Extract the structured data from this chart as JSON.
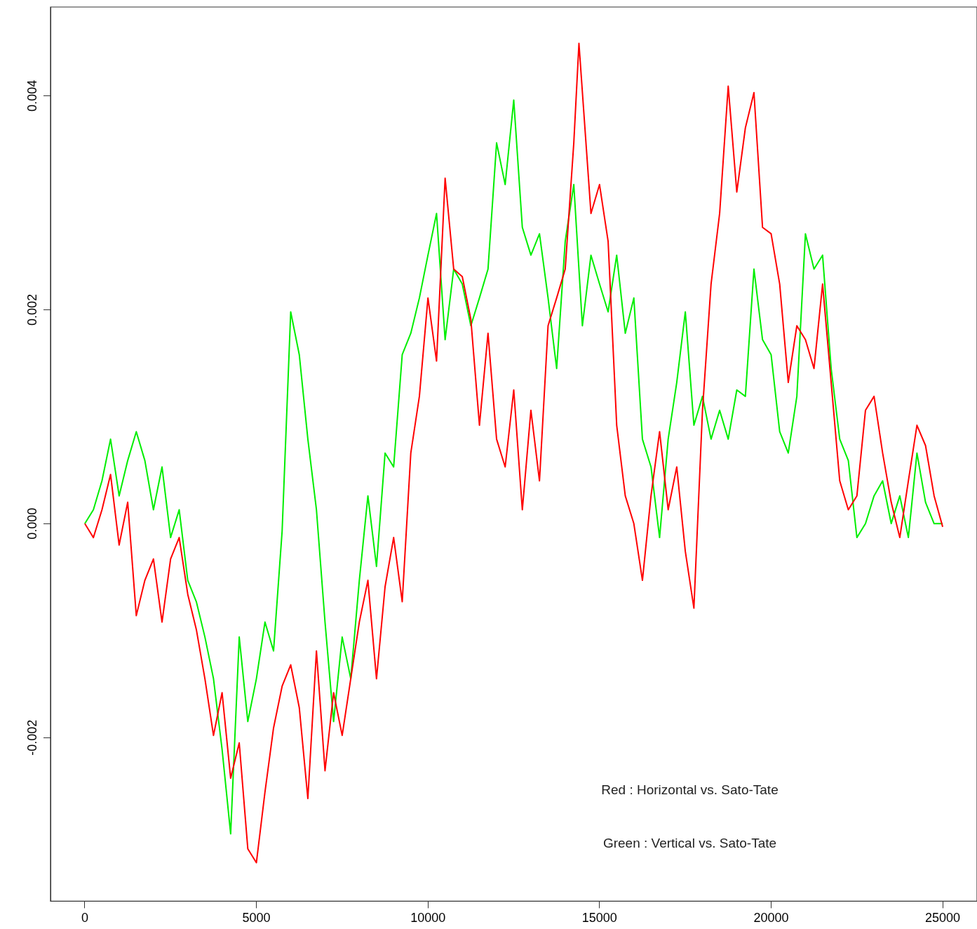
{
  "chart_data": {
    "type": "line",
    "xlim": [
      -1000,
      26000
    ],
    "ylim": [
      -0.00353,
      0.00483
    ],
    "xticks": [
      0,
      5000,
      10000,
      15000,
      20000,
      25000
    ],
    "yticks": [
      {
        "value": -0.002,
        "label": "-0.002"
      },
      {
        "value": 0,
        "label": "0.000"
      },
      {
        "value": 0.002,
        "label": "0.002"
      },
      {
        "value": 0.004,
        "label": "0.004"
      }
    ],
    "grid": false,
    "legend": false,
    "marker": "none",
    "annotations": [
      "Red : Horizontal vs. Sato-Tate",
      "Green : Vertical vs. Sato-Tate"
    ],
    "series": [
      {
        "color": "#ff0000",
        "x": [
          0,
          250,
          500,
          750,
          1000,
          1250,
          1500,
          1750,
          2000,
          2250,
          2500,
          2750,
          3000,
          3250,
          3500,
          3750,
          4000,
          4250,
          4500,
          4750,
          5000,
          5250,
          5500,
          5750,
          6000,
          6250,
          6500,
          6750,
          7000,
          7250,
          7500,
          7750,
          8000,
          8250,
          8500,
          8750,
          9000,
          9250,
          9500,
          9750,
          10000,
          10250,
          10500,
          10750,
          11000,
          11250,
          11500,
          11750,
          12000,
          12250,
          12500,
          12750,
          13000,
          13250,
          13500,
          13750,
          14000,
          14250,
          14400,
          14750,
          15000,
          15250,
          15500,
          15750,
          16000,
          16250,
          16500,
          16750,
          17000,
          17250,
          17500,
          17750,
          18000,
          18250,
          18500,
          18750,
          19000,
          19250,
          19500,
          19750,
          20000,
          20250,
          20500,
          20750,
          21000,
          21250,
          21500,
          21750,
          22000,
          22250,
          22500,
          22750,
          23000,
          23250,
          23500,
          23750,
          24000,
          24250,
          24500,
          24750,
          25000
        ],
        "values": [
          0,
          -0.00013,
          0.00013,
          0.00046,
          -0.0002,
          0.0002,
          -0.00086,
          -0.00053,
          -0.00033,
          -0.00092,
          -0.00033,
          -0.00013,
          -0.00066,
          -0.00099,
          -0.00145,
          -0.00198,
          -0.00158,
          -0.00238,
          -0.00205,
          -0.00304,
          -0.00317,
          -0.00251,
          -0.00191,
          -0.00152,
          -0.00132,
          -0.00172,
          -0.00257,
          -0.00119,
          -0.00231,
          -0.00158,
          -0.00198,
          -0.00145,
          -0.00092,
          -0.00053,
          -0.00145,
          -0.00059,
          -0.00013,
          -0.00073,
          0.00066,
          0.00119,
          0.00211,
          0.00152,
          0.00323,
          0.00238,
          0.00231,
          0.00191,
          0.00092,
          0.00178,
          0.00079,
          0.00053,
          0.00125,
          0.00013,
          0.00106,
          0.0004,
          0.00185,
          0.00211,
          0.00238,
          0.00356,
          0.00449,
          0.0029,
          0.00317,
          0.00264,
          0.00092,
          0.00026,
          0,
          -0.00053,
          0.00026,
          0.00086,
          0.00013,
          0.00053,
          -0.00026,
          -0.00079,
          0.00106,
          0.00224,
          0.0029,
          0.00409,
          0.0031,
          0.0037,
          0.00403,
          0.00277,
          0.00271,
          0.00224,
          0.00132,
          0.00185,
          0.00172,
          0.00145,
          0.00224,
          0.00132,
          0.0004,
          0.00013,
          0.00026,
          0.00106,
          0.00119,
          0.00066,
          0.0002,
          -0.00013,
          0.0004,
          0.00092,
          0.00073,
          0.00026,
          -3e-05
        ]
      },
      {
        "color": "#00ee00",
        "x": [
          0,
          250,
          500,
          750,
          1000,
          1250,
          1500,
          1750,
          2000,
          2250,
          2500,
          2750,
          3000,
          3250,
          3500,
          3750,
          4000,
          4250,
          4500,
          4750,
          5000,
          5250,
          5500,
          5750,
          6000,
          6250,
          6500,
          6750,
          7000,
          7250,
          7500,
          7750,
          8000,
          8250,
          8500,
          8750,
          9000,
          9250,
          9500,
          9750,
          10000,
          10250,
          10500,
          10750,
          11000,
          11250,
          11500,
          11750,
          12000,
          12250,
          12500,
          12750,
          13000,
          13250,
          13500,
          13750,
          14000,
          14250,
          14500,
          14750,
          15000,
          15250,
          15500,
          15750,
          16000,
          16250,
          16500,
          16750,
          17000,
          17250,
          17500,
          17750,
          18000,
          18250,
          18500,
          18750,
          19000,
          19250,
          19500,
          19750,
          20000,
          20250,
          20500,
          20750,
          21000,
          21250,
          21500,
          21750,
          22000,
          22250,
          22500,
          22750,
          23000,
          23250,
          23500,
          23750,
          24000,
          24250,
          24500,
          24750,
          25000
        ],
        "values": [
          0,
          0.00013,
          0.0004,
          0.00079,
          0.00026,
          0.00059,
          0.00086,
          0.00059,
          0.00013,
          0.00053,
          -0.00013,
          0.00013,
          -0.00053,
          -0.00073,
          -0.00106,
          -0.00145,
          -0.00211,
          -0.0029,
          -0.00106,
          -0.00185,
          -0.00145,
          -0.00092,
          -0.00119,
          -7e-05,
          0.00198,
          0.00158,
          0.00079,
          0.00013,
          -0.00092,
          -0.00185,
          -0.00106,
          -0.00145,
          -0.00053,
          0.00026,
          -0.0004,
          0.00066,
          0.00053,
          0.00158,
          0.00178,
          0.00211,
          0.00251,
          0.0029,
          0.00172,
          0.00238,
          0.00224,
          0.00185,
          0.00211,
          0.00238,
          0.00356,
          0.00317,
          0.00396,
          0.00277,
          0.00251,
          0.00271,
          0.00211,
          0.00145,
          0.00264,
          0.00317,
          0.00185,
          0.00251,
          0.00224,
          0.00198,
          0.00251,
          0.00178,
          0.00211,
          0.00079,
          0.00053,
          -0.00013,
          0.00079,
          0.00132,
          0.00198,
          0.00092,
          0.00119,
          0.00079,
          0.00106,
          0.00079,
          0.00125,
          0.00119,
          0.00238,
          0.00172,
          0.00158,
          0.00086,
          0.00066,
          0.00119,
          0.00271,
          0.00238,
          0.00251,
          0.00145,
          0.00079,
          0.00059,
          -0.00013,
          0,
          0.00026,
          0.0004,
          0,
          0.00026,
          -0.00013,
          0.00066,
          0.0002,
          0,
          0
        ]
      }
    ]
  }
}
